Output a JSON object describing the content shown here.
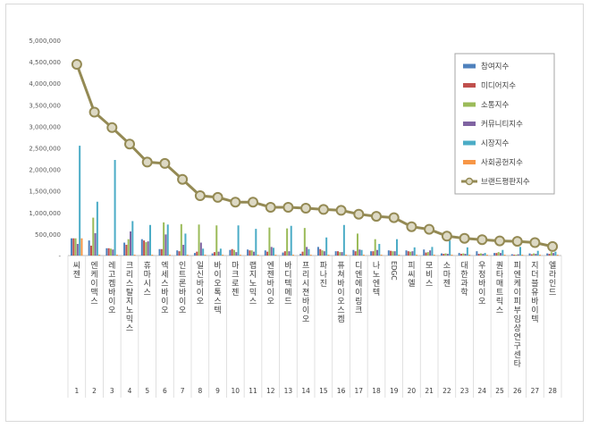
{
  "chart_data": {
    "type": "bar+line",
    "title": "",
    "xlabel": "",
    "ylabel": "",
    "ylim": [
      0,
      5000000
    ],
    "yticks": [
      0,
      500000,
      1000000,
      1500000,
      2000000,
      2500000,
      3000000,
      3500000,
      4000000,
      4500000,
      5000000
    ],
    "ytick_labels": [
      "-",
      "500,000",
      "1,000,000",
      "1,500,000",
      "2,000,000",
      "2,500,000",
      "3,000,000",
      "3,500,000",
      "4,000,000",
      "4,500,000",
      "5,000,000"
    ],
    "categories": [
      "씨젠",
      "엔케이맥스",
      "레고켐바이오",
      "크리스탈지노믹스",
      "휴마시스",
      "엑세스바이오",
      "인트론바이오",
      "일신바이오",
      "바이오톡스텍",
      "마크로젠",
      "랩지노믹스",
      "엔젠바이오",
      "바디텍메드",
      "프리시젼바이오",
      "파나진",
      "퓨쳐바이오스켐",
      "디엔에이링크",
      "나노엔텍",
      "EDGC",
      "피씨엘",
      "모비스",
      "소마젠",
      "대한과학",
      "우정바이오",
      "퀀타매트릭스",
      "피엔케이피부임상연구센타",
      "지더블유바이텍",
      "엘라인드"
    ],
    "ranks": [
      "1",
      "2",
      "3",
      "4",
      "5",
      "6",
      "7",
      "8",
      "9",
      "10",
      "11",
      "12",
      "13",
      "14",
      "15",
      "16",
      "17",
      "18",
      "19",
      "20",
      "21",
      "22",
      "23",
      "24",
      "25",
      "26",
      "27",
      "28"
    ],
    "series": [
      {
        "name": "참여지수",
        "color": "#4f81bd",
        "values": [
          400000,
          350000,
          170000,
          300000,
          380000,
          150000,
          120000,
          60000,
          50000,
          130000,
          140000,
          120000,
          70000,
          40000,
          200000,
          100000,
          130000,
          100000,
          120000,
          120000,
          140000,
          50000,
          60000,
          100000,
          60000,
          30000,
          50000,
          50000
        ]
      },
      {
        "name": "미디어지수",
        "color": "#c0504d",
        "values": [
          400000,
          230000,
          170000,
          250000,
          350000,
          150000,
          100000,
          90000,
          80000,
          150000,
          120000,
          90000,
          100000,
          90000,
          150000,
          100000,
          100000,
          100000,
          110000,
          100000,
          70000,
          40000,
          40000,
          40000,
          60000,
          20000,
          30000,
          40000
        ]
      },
      {
        "name": "소통지수",
        "color": "#9bbb59",
        "values": [
          400000,
          880000,
          160000,
          380000,
          310000,
          770000,
          730000,
          720000,
          700000,
          130000,
          120000,
          650000,
          630000,
          640000,
          120000,
          80000,
          510000,
          380000,
          100000,
          90000,
          80000,
          50000,
          50000,
          50000,
          80000,
          20000,
          50000,
          80000
        ]
      },
      {
        "name": "커뮤니티지수",
        "color": "#8064a2",
        "values": [
          270000,
          520000,
          140000,
          560000,
          330000,
          490000,
          250000,
          300000,
          90000,
          80000,
          90000,
          200000,
          100000,
          200000,
          100000,
          80000,
          140000,
          130000,
          100000,
          100000,
          120000,
          40000,
          40000,
          40000,
          60000,
          30000,
          40000,
          60000
        ]
      },
      {
        "name": "시장지수",
        "color": "#4bacc6",
        "values": [
          2550000,
          1250000,
          2220000,
          800000,
          710000,
          720000,
          510000,
          160000,
          160000,
          700000,
          620000,
          180000,
          690000,
          150000,
          420000,
          710000,
          130000,
          270000,
          380000,
          190000,
          200000,
          350000,
          190000,
          60000,
          130000,
          200000,
          110000,
          90000
        ]
      },
      {
        "name": "사회공헌지수",
        "color": "#f79646",
        "values": [
          400000,
          20000,
          20000,
          20000,
          20000,
          20000,
          20000,
          20000,
          20000,
          20000,
          20000,
          20000,
          20000,
          20000,
          20000,
          20000,
          20000,
          20000,
          20000,
          20000,
          20000,
          20000,
          20000,
          20000,
          20000,
          20000,
          20000,
          20000
        ]
      }
    ],
    "line": {
      "name": "브랜드평판지수",
      "color": "#948a54",
      "marker": "#ddd9c4",
      "values": [
        4440000,
        3330000,
        2970000,
        2590000,
        2170000,
        2140000,
        1770000,
        1390000,
        1350000,
        1240000,
        1240000,
        1120000,
        1120000,
        1100000,
        1070000,
        1050000,
        960000,
        910000,
        880000,
        670000,
        610000,
        450000,
        400000,
        370000,
        340000,
        330000,
        300000,
        210000
      ]
    },
    "legend_position": "top-right",
    "grid": false
  }
}
